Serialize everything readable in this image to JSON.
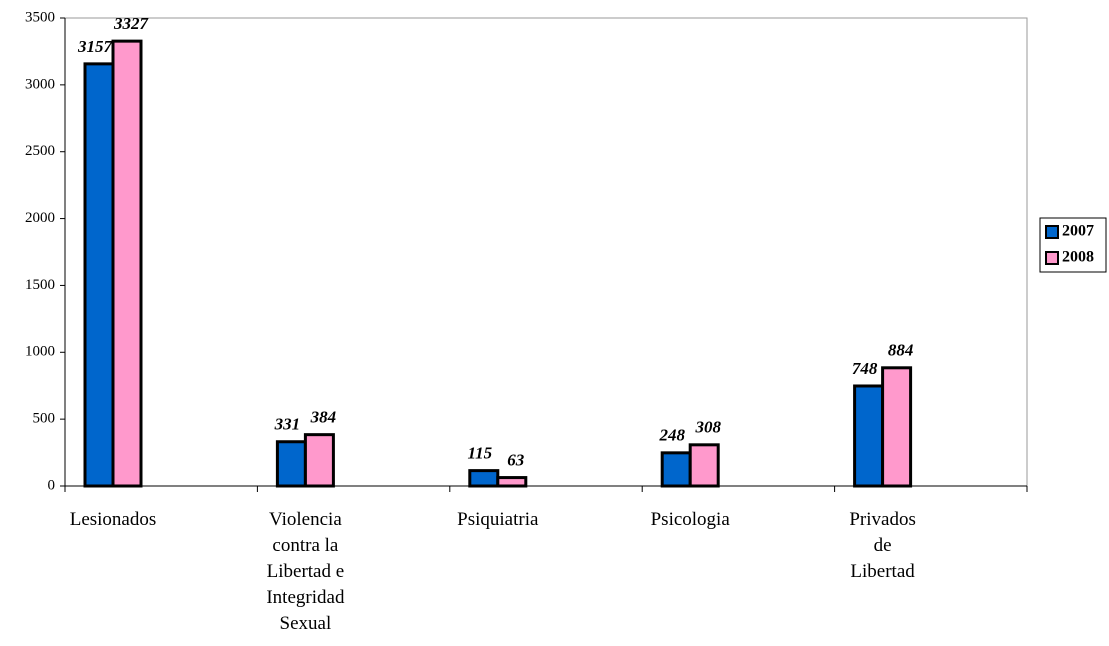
{
  "chart_data": {
    "type": "bar",
    "categories": [
      "Lesionados",
      "Violencia contra la Libertad e Integridad Sexual",
      "Psiquiatria",
      "Psicologia",
      "Privados de Libertad"
    ],
    "series": [
      {
        "name": "2007",
        "color": "#0066cc",
        "values": [
          3157,
          331,
          115,
          248,
          748
        ]
      },
      {
        "name": "2008",
        "color": "#ff99cc",
        "values": [
          3327,
          384,
          63,
          308,
          884
        ]
      }
    ],
    "ylim": [
      0,
      3500
    ],
    "yticks": [
      0,
      500,
      1000,
      1500,
      2000,
      2500,
      3000,
      3500
    ],
    "legend": "right"
  }
}
